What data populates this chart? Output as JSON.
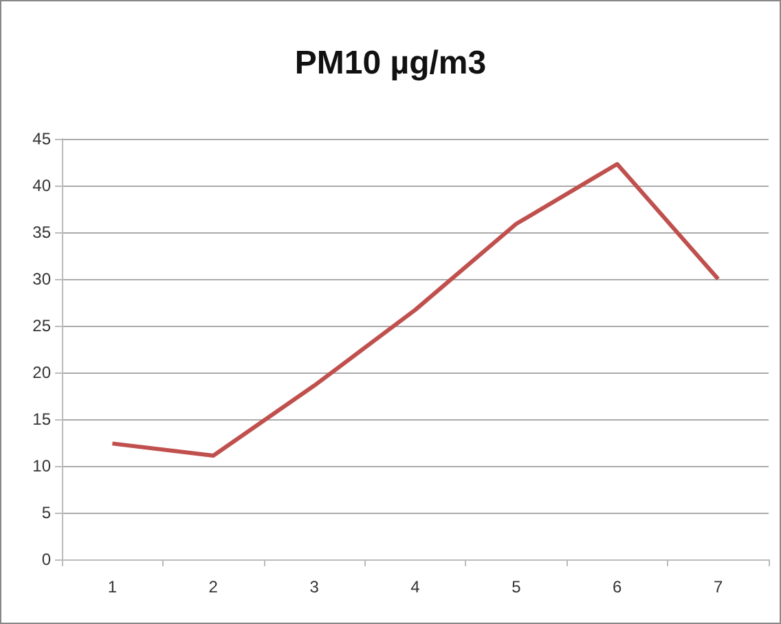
{
  "chart_data": {
    "type": "line",
    "title": "PM10 µg/m3",
    "categories": [
      "1",
      "2",
      "3",
      "4",
      "5",
      "6",
      "7"
    ],
    "series": [
      {
        "color": "#c0504d",
        "values": [
          12.4,
          11.1,
          18.6,
          26.7,
          35.9,
          42.3,
          30.0
        ]
      }
    ],
    "ylim": [
      0,
      45
    ],
    "yticks": [
      0,
      5,
      10,
      15,
      20,
      25,
      30,
      35,
      40,
      45
    ],
    "grid": "y",
    "marker": "none",
    "line_style": "solid"
  }
}
